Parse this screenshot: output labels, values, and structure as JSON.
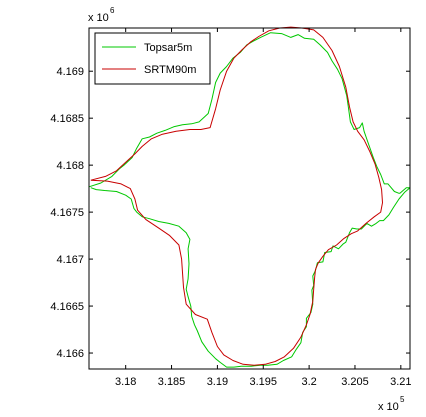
{
  "chart_data": {
    "type": "line",
    "title": "",
    "xlabel": "",
    "ylabel": "",
    "x_exponent_label": "x 10",
    "x_exponent_power": "5",
    "y_exponent_label": "x 10",
    "y_exponent_power": "6",
    "xlim": [
      3.176,
      3.211
    ],
    "ylim": [
      4.16583,
      4.16946
    ],
    "x_ticks": [
      3.18,
      3.185,
      3.19,
      3.195,
      3.2,
      3.205,
      3.21
    ],
    "x_tick_labels": [
      "3.18",
      "3.185",
      "3.19",
      "3.195",
      "3.2",
      "3.205",
      "3.21"
    ],
    "y_ticks": [
      4.166,
      4.1665,
      4.167,
      4.1675,
      4.168,
      4.1685,
      4.169
    ],
    "y_tick_labels": [
      "4.166",
      "4.1665",
      "4.167",
      "4.1675",
      "4.168",
      "4.1685",
      "4.169"
    ],
    "grid": false,
    "legend_position": "top-left",
    "series": [
      {
        "name": "Topsar5m",
        "color": "#00c800",
        "points": [
          [
            3.176,
            4.16777
          ],
          [
            3.1773,
            4.16781
          ],
          [
            3.1785,
            4.16788
          ],
          [
            3.1793,
            4.16796
          ],
          [
            3.1798,
            4.168
          ],
          [
            3.1807,
            4.16808
          ],
          [
            3.1812,
            4.16818
          ],
          [
            3.1818,
            4.16828
          ],
          [
            3.1826,
            4.1683
          ],
          [
            3.1834,
            4.16834
          ],
          [
            3.1843,
            4.16837
          ],
          [
            3.1853,
            4.16841
          ],
          [
            3.1862,
            4.16843
          ],
          [
            3.1872,
            4.16844
          ],
          [
            3.188,
            4.16846
          ],
          [
            3.189,
            4.16855
          ],
          [
            3.1894,
            4.1687
          ],
          [
            3.1898,
            4.16888
          ],
          [
            3.1903,
            4.16898
          ],
          [
            3.191,
            4.16905
          ],
          [
            3.1917,
            4.16914
          ],
          [
            3.1925,
            4.1692
          ],
          [
            3.1932,
            4.16928
          ],
          [
            3.1939,
            4.16932
          ],
          [
            3.1947,
            4.16936
          ],
          [
            3.1958,
            4.16941
          ],
          [
            3.197,
            4.1694
          ],
          [
            3.198,
            4.16936
          ],
          [
            3.1988,
            4.16939
          ],
          [
            3.1995,
            4.16935
          ],
          [
            3.2005,
            4.16934
          ],
          [
            3.2012,
            4.16928
          ],
          [
            3.202,
            4.1692
          ],
          [
            3.2025,
            4.16911
          ],
          [
            3.2031,
            4.16902
          ],
          [
            3.2036,
            4.16892
          ],
          [
            3.2041,
            4.16874
          ],
          [
            3.2043,
            4.1686
          ],
          [
            3.2045,
            4.16846
          ],
          [
            3.2049,
            4.16838
          ],
          [
            3.2055,
            4.1684
          ],
          [
            3.2058,
            4.16845
          ],
          [
            3.206,
            4.16836
          ],
          [
            3.2065,
            4.16822
          ],
          [
            3.207,
            4.16808
          ],
          [
            3.2074,
            4.16798
          ],
          [
            3.2078,
            4.1679
          ],
          [
            3.2082,
            4.1678
          ],
          [
            3.2086,
            4.1678
          ],
          [
            3.2093,
            4.16772
          ],
          [
            3.2098,
            4.1677
          ],
          [
            3.2099,
            4.1677
          ],
          [
            3.2106,
            4.16776
          ],
          [
            3.211,
            4.16776
          ],
          [
            3.2104,
            4.16771
          ],
          [
            3.2098,
            4.16764
          ],
          [
            3.2092,
            4.16755
          ],
          [
            3.2087,
            4.16747
          ],
          [
            3.2081,
            4.16741
          ],
          [
            3.2077,
            4.16741
          ],
          [
            3.2073,
            4.16738
          ],
          [
            3.2068,
            4.16735
          ],
          [
            3.2063,
            4.16738
          ],
          [
            3.2057,
            4.16732
          ],
          [
            3.2052,
            4.16732
          ],
          [
            3.2047,
            4.16733
          ],
          [
            3.2044,
            4.16728
          ],
          [
            3.204,
            4.16718
          ],
          [
            3.2037,
            4.16716
          ],
          [
            3.2032,
            4.16711
          ],
          [
            3.2026,
            4.16714
          ],
          [
            3.2024,
            4.16708
          ],
          [
            3.2017,
            4.16707
          ],
          [
            3.2015,
            4.16697
          ],
          [
            3.2009,
            4.16696
          ],
          [
            3.2007,
            4.16688
          ],
          [
            3.2004,
            4.16682
          ],
          [
            3.2005,
            4.16672
          ],
          [
            3.2003,
            4.16667
          ],
          [
            3.2004,
            4.16652
          ],
          [
            3.2002,
            4.16643
          ],
          [
            3.1997,
            4.16637
          ],
          [
            3.1997,
            4.16628
          ],
          [
            3.1993,
            4.16622
          ],
          [
            3.1991,
            4.16611
          ],
          [
            3.1986,
            4.16604
          ],
          [
            3.1981,
            4.16596
          ],
          [
            3.1972,
            4.16592
          ],
          [
            3.1965,
            4.16588
          ],
          [
            3.1955,
            4.16587
          ],
          [
            3.1947,
            4.16587
          ],
          [
            3.1937,
            4.16586
          ],
          [
            3.1926,
            4.16586
          ],
          [
            3.1918,
            4.16585
          ],
          [
            3.191,
            4.16585
          ],
          [
            3.1903,
            4.1659
          ],
          [
            3.1898,
            4.16594
          ],
          [
            3.1895,
            4.16597
          ],
          [
            3.189,
            4.16602
          ],
          [
            3.1883,
            4.16612
          ],
          [
            3.1878,
            4.16624
          ],
          [
            3.1875,
            4.1663
          ],
          [
            3.1872,
            4.16639
          ],
          [
            3.1871,
            4.1665
          ],
          [
            3.1868,
            4.1666
          ],
          [
            3.1866,
            4.16668
          ],
          [
            3.1868,
            4.16679
          ],
          [
            3.1869,
            4.16695
          ],
          [
            3.1868,
            4.16711
          ],
          [
            3.187,
            4.16721
          ],
          [
            3.1866,
            4.16728
          ],
          [
            3.1858,
            4.16735
          ],
          [
            3.1847,
            4.16738
          ],
          [
            3.1836,
            4.1674
          ],
          [
            3.1826,
            4.16743
          ],
          [
            3.1818,
            4.16745
          ],
          [
            3.1812,
            4.1675
          ],
          [
            3.1809,
            4.16754
          ],
          [
            3.1806,
            4.16764
          ],
          [
            3.18,
            4.16768
          ],
          [
            3.179,
            4.16772
          ],
          [
            3.1777,
            4.16773
          ],
          [
            3.1768,
            4.16774
          ],
          [
            3.1762,
            4.16776
          ]
        ]
      },
      {
        "name": "SRTM90m",
        "color": "#c80000",
        "points": [
          [
            3.1762,
            4.16784
          ],
          [
            3.1778,
            4.16788
          ],
          [
            3.179,
            4.16794
          ],
          [
            3.18,
            4.16803
          ],
          [
            3.181,
            4.16812
          ],
          [
            3.1818,
            4.1682
          ],
          [
            3.1828,
            4.16828
          ],
          [
            3.184,
            4.16833
          ],
          [
            3.1855,
            4.16836
          ],
          [
            3.187,
            4.16838
          ],
          [
            3.1882,
            4.16838
          ],
          [
            3.1892,
            4.1684
          ],
          [
            3.1898,
            4.1686
          ],
          [
            3.1903,
            4.1688
          ],
          [
            3.191,
            4.169
          ],
          [
            3.1918,
            4.16914
          ],
          [
            3.1927,
            4.16923
          ],
          [
            3.1936,
            4.16931
          ],
          [
            3.1945,
            4.16937
          ],
          [
            3.1956,
            4.16943
          ],
          [
            3.1968,
            4.16946
          ],
          [
            3.198,
            4.16947
          ],
          [
            3.1992,
            4.16946
          ],
          [
            3.2005,
            4.16944
          ],
          [
            3.2015,
            4.16936
          ],
          [
            3.2025,
            4.16922
          ],
          [
            3.2033,
            4.16905
          ],
          [
            3.204,
            4.16883
          ],
          [
            3.2044,
            4.16862
          ],
          [
            3.2048,
            4.16846
          ],
          [
            3.2053,
            4.16836
          ],
          [
            3.206,
            4.16827
          ],
          [
            3.2066,
            4.16815
          ],
          [
            3.2072,
            4.16801
          ],
          [
            3.2076,
            4.16787
          ],
          [
            3.2079,
            4.16774
          ],
          [
            3.208,
            4.1676
          ],
          [
            3.2078,
            4.1675
          ],
          [
            3.2071,
            4.16745
          ],
          [
            3.2062,
            4.16738
          ],
          [
            3.2053,
            4.1673
          ],
          [
            3.2046,
            4.16727
          ],
          [
            3.2038,
            4.16722
          ],
          [
            3.203,
            4.16715
          ],
          [
            3.2021,
            4.1671
          ],
          [
            3.2015,
            4.16703
          ],
          [
            3.201,
            4.16696
          ],
          [
            3.2007,
            4.16689
          ],
          [
            3.2006,
            4.1668
          ],
          [
            3.2005,
            4.16668
          ],
          [
            3.2004,
            4.16655
          ],
          [
            3.2001,
            4.16641
          ],
          [
            3.1997,
            4.1663
          ],
          [
            3.1991,
            4.16617
          ],
          [
            3.1983,
            4.16605
          ],
          [
            3.1973,
            4.16596
          ],
          [
            3.1963,
            4.16591
          ],
          [
            3.1952,
            4.16588
          ],
          [
            3.194,
            4.16587
          ],
          [
            3.1928,
            4.16588
          ],
          [
            3.1917,
            4.16592
          ],
          [
            3.1907,
            4.16598
          ],
          [
            3.19,
            4.16607
          ],
          [
            3.1894,
            4.16622
          ],
          [
            3.1889,
            4.16636
          ],
          [
            3.1876,
            4.16641
          ],
          [
            3.1866,
            4.16652
          ],
          [
            3.1863,
            4.1667
          ],
          [
            3.1861,
            4.167
          ],
          [
            3.1858,
            4.16715
          ],
          [
            3.1848,
            4.16725
          ],
          [
            3.1836,
            4.16733
          ],
          [
            3.1822,
            4.16742
          ],
          [
            3.1813,
            4.16752
          ],
          [
            3.181,
            4.16764
          ],
          [
            3.1805,
            4.16775
          ],
          [
            3.1795,
            4.1678
          ],
          [
            3.178,
            4.16783
          ],
          [
            3.1762,
            4.16784
          ]
        ]
      }
    ]
  }
}
